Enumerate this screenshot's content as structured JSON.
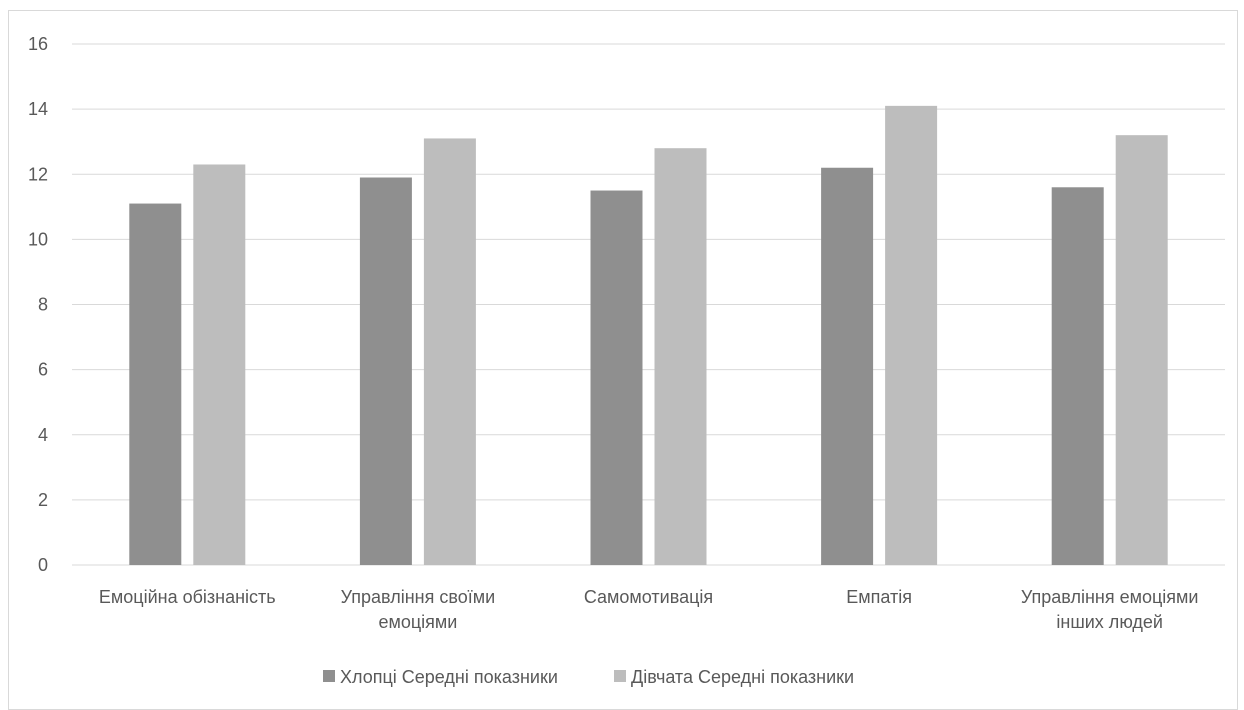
{
  "chart_data": {
    "type": "bar",
    "title": "",
    "xlabel": "",
    "ylabel": "",
    "categories": [
      [
        "Емоційна обізнаність"
      ],
      [
        "Управління своїми",
        "емоціями"
      ],
      [
        "Самомотивація"
      ],
      [
        "Емпатія"
      ],
      [
        "Управління емоціями",
        "інших людей"
      ]
    ],
    "series": [
      {
        "name": "Хлопці Середні показники",
        "values": [
          11.1,
          11.9,
          11.5,
          12.2,
          11.6
        ],
        "color": "#8f8f8f"
      },
      {
        "name": "Дівчата Середні показники",
        "values": [
          12.3,
          13.1,
          12.8,
          14.1,
          13.2
        ],
        "color": "#bdbdbd"
      }
    ],
    "ylim": [
      0,
      16
    ],
    "yticks": [
      0,
      2,
      4,
      6,
      8,
      10,
      12,
      14,
      16
    ],
    "grid": true,
    "legend": "bottom"
  }
}
